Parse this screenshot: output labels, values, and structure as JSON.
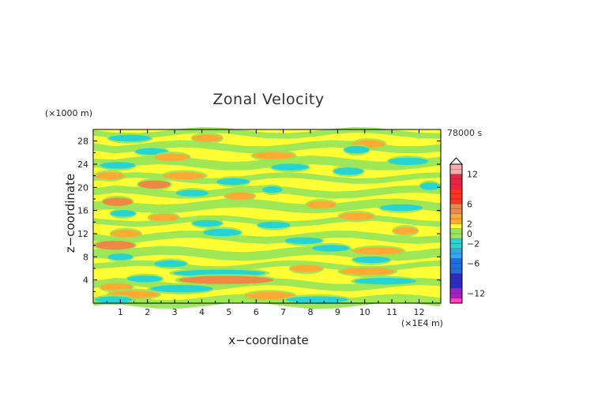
{
  "chart_data": {
    "type": "heatmap",
    "title": "Zonal Velocity",
    "xlabel": "x−coordinate",
    "ylabel": "z−coordinate",
    "x_unit": "(×1E4 m)",
    "y_unit": "(×1000 m)",
    "time_label": "78000 s",
    "xlim": [
      0,
      12.8
    ],
    "ylim": [
      0,
      30
    ],
    "x_ticks": [
      1,
      2,
      3,
      4,
      5,
      6,
      7,
      8,
      9,
      10,
      11,
      12
    ],
    "y_ticks": [
      4,
      8,
      12,
      16,
      20,
      24,
      28
    ],
    "colorbar": {
      "range": [
        -14,
        14
      ],
      "tick_labels": [
        "12",
        "6",
        "2",
        "0",
        "−2",
        "−6",
        "−12"
      ],
      "tick_values": [
        12,
        6,
        2,
        0,
        -2,
        -6,
        -12
      ],
      "levels": [
        {
          "min": -14,
          "max": -13,
          "color": "#ff44bb"
        },
        {
          "min": -13,
          "max": -11,
          "color": "#a020c0"
        },
        {
          "min": -11,
          "max": -8,
          "color": "#2b2bcc"
        },
        {
          "min": -8,
          "max": -5,
          "color": "#1f6fe0"
        },
        {
          "min": -5,
          "max": -3,
          "color": "#33a6f0"
        },
        {
          "min": -3,
          "max": -1,
          "color": "#26d4d4"
        },
        {
          "min": -1,
          "max": 1,
          "color": "#99e65a"
        },
        {
          "min": 1,
          "max": 2,
          "color": "#ffff33"
        },
        {
          "min": 2,
          "max": 4,
          "color": "#ffaa33"
        },
        {
          "min": 4,
          "max": 6,
          "color": "#ee8844"
        },
        {
          "min": 6,
          "max": 9,
          "color": "#ff3322"
        },
        {
          "min": 9,
          "max": 12,
          "color": "#ee2244"
        },
        {
          "min": 12,
          "max": 14,
          "color": "#ffaaaa"
        }
      ]
    },
    "field_bands": [
      {
        "z": 28.5,
        "x0": 0.5,
        "x1": 2.2,
        "u": -2
      },
      {
        "z": 28.5,
        "x0": 3.6,
        "x1": 4.8,
        "u": 3
      },
      {
        "z": 27.5,
        "x0": 9.5,
        "x1": 10.8,
        "u": 3
      },
      {
        "z": 26.5,
        "x0": 9.2,
        "x1": 10.2,
        "u": -3
      },
      {
        "z": 26.2,
        "x0": 1.5,
        "x1": 2.8,
        "u": -2
      },
      {
        "z": 25.5,
        "x0": 5.8,
        "x1": 7.5,
        "u": 3
      },
      {
        "z": 25.2,
        "x0": 2.2,
        "x1": 3.6,
        "u": 3
      },
      {
        "z": 24.5,
        "x0": 10.8,
        "x1": 12.4,
        "u": -3
      },
      {
        "z": 23.8,
        "x0": 0.2,
        "x1": 1.6,
        "u": -2
      },
      {
        "z": 23.5,
        "x0": 6.5,
        "x1": 8.0,
        "u": -2
      },
      {
        "z": 22.8,
        "x0": 8.8,
        "x1": 10.0,
        "u": -3
      },
      {
        "z": 22.0,
        "x0": 0.0,
        "x1": 1.2,
        "u": 3
      },
      {
        "z": 22.0,
        "x0": 2.5,
        "x1": 4.2,
        "u": 3
      },
      {
        "z": 21.0,
        "x0": 4.5,
        "x1": 5.8,
        "u": -2
      },
      {
        "z": 20.5,
        "x0": 1.6,
        "x1": 2.9,
        "u": 4
      },
      {
        "z": 20.2,
        "x0": 12.0,
        "x1": 12.8,
        "u": -3
      },
      {
        "z": 19.6,
        "x0": 6.2,
        "x1": 7.0,
        "u": -2
      },
      {
        "z": 19.0,
        "x0": 3.0,
        "x1": 4.3,
        "u": -2
      },
      {
        "z": 18.5,
        "x0": 4.8,
        "x1": 6.0,
        "u": 3
      },
      {
        "z": 17.5,
        "x0": 0.3,
        "x1": 1.5,
        "u": 4
      },
      {
        "z": 17.0,
        "x0": 7.8,
        "x1": 9.0,
        "u": 3
      },
      {
        "z": 16.5,
        "x0": 10.5,
        "x1": 12.2,
        "u": -2
      },
      {
        "z": 15.5,
        "x0": 0.6,
        "x1": 1.6,
        "u": -2
      },
      {
        "z": 15.0,
        "x0": 9.0,
        "x1": 10.4,
        "u": 3
      },
      {
        "z": 14.8,
        "x0": 2.0,
        "x1": 3.2,
        "u": 3
      },
      {
        "z": 13.8,
        "x0": 3.6,
        "x1": 4.8,
        "u": -2
      },
      {
        "z": 13.5,
        "x0": 6.0,
        "x1": 7.3,
        "u": -2
      },
      {
        "z": 12.5,
        "x0": 11.0,
        "x1": 12.0,
        "u": 3
      },
      {
        "z": 12.2,
        "x0": 4.0,
        "x1": 5.5,
        "u": -3
      },
      {
        "z": 12.0,
        "x0": 0.6,
        "x1": 1.8,
        "u": 3
      },
      {
        "z": 10.8,
        "x0": 7.0,
        "x1": 8.5,
        "u": -2
      },
      {
        "z": 10.0,
        "x0": 0.0,
        "x1": 1.6,
        "u": 5
      },
      {
        "z": 9.5,
        "x0": 8.0,
        "x1": 9.5,
        "u": -2
      },
      {
        "z": 9.0,
        "x0": 9.5,
        "x1": 11.5,
        "u": 3
      },
      {
        "z": 8.0,
        "x0": 0.5,
        "x1": 1.5,
        "u": -2
      },
      {
        "z": 7.5,
        "x0": 9.5,
        "x1": 11.0,
        "u": -2
      },
      {
        "z": 6.8,
        "x0": 2.2,
        "x1": 3.5,
        "u": -2
      },
      {
        "z": 6.0,
        "x0": 7.2,
        "x1": 8.5,
        "u": 3
      },
      {
        "z": 5.5,
        "x0": 9.0,
        "x1": 11.2,
        "u": 3
      },
      {
        "z": 5.2,
        "x0": 2.8,
        "x1": 6.5,
        "u": -2
      },
      {
        "z": 4.2,
        "x0": 1.2,
        "x1": 2.6,
        "u": -2
      },
      {
        "z": 4.0,
        "x0": 3.0,
        "x1": 6.8,
        "u": 4
      },
      {
        "z": 3.8,
        "x0": 9.5,
        "x1": 12.0,
        "u": -2
      },
      {
        "z": 2.8,
        "x0": 0.2,
        "x1": 1.5,
        "u": 3
      },
      {
        "z": 2.5,
        "x0": 2.0,
        "x1": 4.5,
        "u": -3
      },
      {
        "z": 1.5,
        "x0": 0.5,
        "x1": 2.5,
        "u": 3
      },
      {
        "z": 1.3,
        "x0": 5.5,
        "x1": 7.5,
        "u": 3
      },
      {
        "z": 0.6,
        "x0": 0.0,
        "x1": 1.5,
        "u": -2
      },
      {
        "z": 0.6,
        "x0": 7.0,
        "x1": 9.5,
        "u": -2
      }
    ]
  }
}
